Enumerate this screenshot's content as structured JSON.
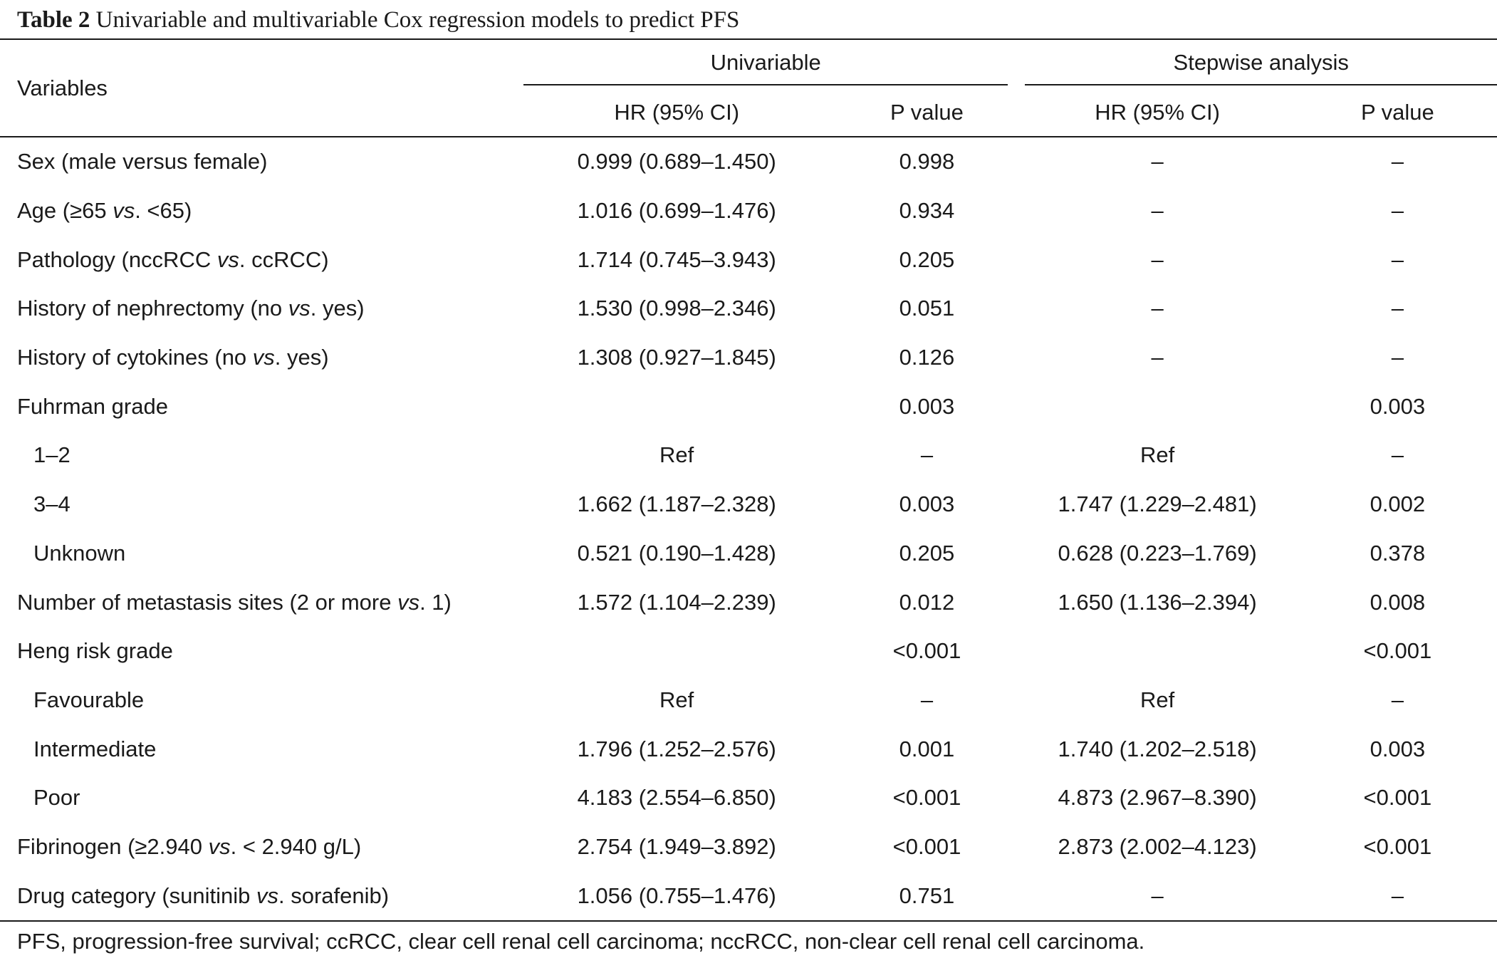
{
  "caption": {
    "label": "Table 2",
    "text": "Univariable and multivariable Cox regression models to predict PFS"
  },
  "header": {
    "variables": "Variables",
    "group1": "Univariable",
    "group2": "Stepwise analysis",
    "hr1": "HR (95% CI)",
    "p1": "P value",
    "hr2": "HR (95% CI)",
    "p2": "P value"
  },
  "rows": [
    {
      "pre": "Sex (male versus female)",
      "vs": "",
      "post": "",
      "hr1": "0.999 (0.689–1.450)",
      "p1": "0.998",
      "hr2": "–",
      "p2": "–"
    },
    {
      "pre": "Age (≥65 ",
      "vs": "vs",
      "post": ". <65)",
      "hr1": "1.016 (0.699–1.476)",
      "p1": "0.934",
      "hr2": "–",
      "p2": "–"
    },
    {
      "pre": "Pathology (nccRCC ",
      "vs": "vs",
      "post": ". ccRCC)",
      "hr1": "1.714 (0.745–3.943)",
      "p1": "0.205",
      "hr2": "–",
      "p2": "–"
    },
    {
      "pre": "History of nephrectomy (no ",
      "vs": "vs",
      "post": ". yes)",
      "hr1": "1.530 (0.998–2.346)",
      "p1": "0.051",
      "hr2": "–",
      "p2": "–"
    },
    {
      "pre": "History of cytokines (no ",
      "vs": "vs",
      "post": ". yes)",
      "hr1": "1.308 (0.927–1.845)",
      "p1": "0.126",
      "hr2": "–",
      "p2": "–"
    },
    {
      "pre": "Fuhrman grade",
      "vs": "",
      "post": "",
      "hr1": "",
      "p1": "0.003",
      "hr2": "",
      "p2": "0.003"
    },
    {
      "pre": "1–2",
      "vs": "",
      "post": "",
      "hr1": "Ref",
      "p1": "–",
      "hr2": "Ref",
      "p2": "–"
    },
    {
      "pre": "3–4",
      "vs": "",
      "post": "",
      "hr1": "1.662 (1.187–2.328)",
      "p1": "0.003",
      "hr2": "1.747 (1.229–2.481)",
      "p2": "0.002"
    },
    {
      "pre": "Unknown",
      "vs": "",
      "post": "",
      "hr1": "0.521 (0.190–1.428)",
      "p1": "0.205",
      "hr2": "0.628 (0.223–1.769)",
      "p2": "0.378"
    },
    {
      "pre": "Number of metastasis sites (2 or more ",
      "vs": "vs",
      "post": ". 1)",
      "hr1": "1.572 (1.104–2.239)",
      "p1": "0.012",
      "hr2": "1.650 (1.136–2.394)",
      "p2": "0.008"
    },
    {
      "pre": "Heng risk grade",
      "vs": "",
      "post": "",
      "hr1": "",
      "p1": "<0.001",
      "hr2": "",
      "p2": "<0.001"
    },
    {
      "pre": "Favourable",
      "vs": "",
      "post": "",
      "hr1": "Ref",
      "p1": "–",
      "hr2": "Ref",
      "p2": "–"
    },
    {
      "pre": "Intermediate",
      "vs": "",
      "post": "",
      "hr1": "1.796 (1.252–2.576)",
      "p1": "0.001",
      "hr2": "1.740 (1.202–2.518)",
      "p2": "0.003"
    },
    {
      "pre": "Poor",
      "vs": "",
      "post": "",
      "hr1": "4.183 (2.554–6.850)",
      "p1": "<0.001",
      "hr2": "4.873 (2.967–8.390)",
      "p2": "<0.001"
    },
    {
      "pre": "Fibrinogen (≥2.940 ",
      "vs": "vs",
      "post": ". < 2.940 g/L)",
      "hr1": "2.754 (1.949–3.892)",
      "p1": "<0.001",
      "hr2": "2.873 (2.002–4.123)",
      "p2": "<0.001"
    },
    {
      "pre": "Drug category (sunitinib ",
      "vs": "vs",
      "post": ". sorafenib)",
      "hr1": "1.056 (0.755–1.476)",
      "p1": "0.751",
      "hr2": "–",
      "p2": "–"
    }
  ],
  "footnote": "PFS, progression-free survival; ccRCC, clear cell renal cell carcinoma; nccRCC, non-clear cell renal cell carcinoma."
}
